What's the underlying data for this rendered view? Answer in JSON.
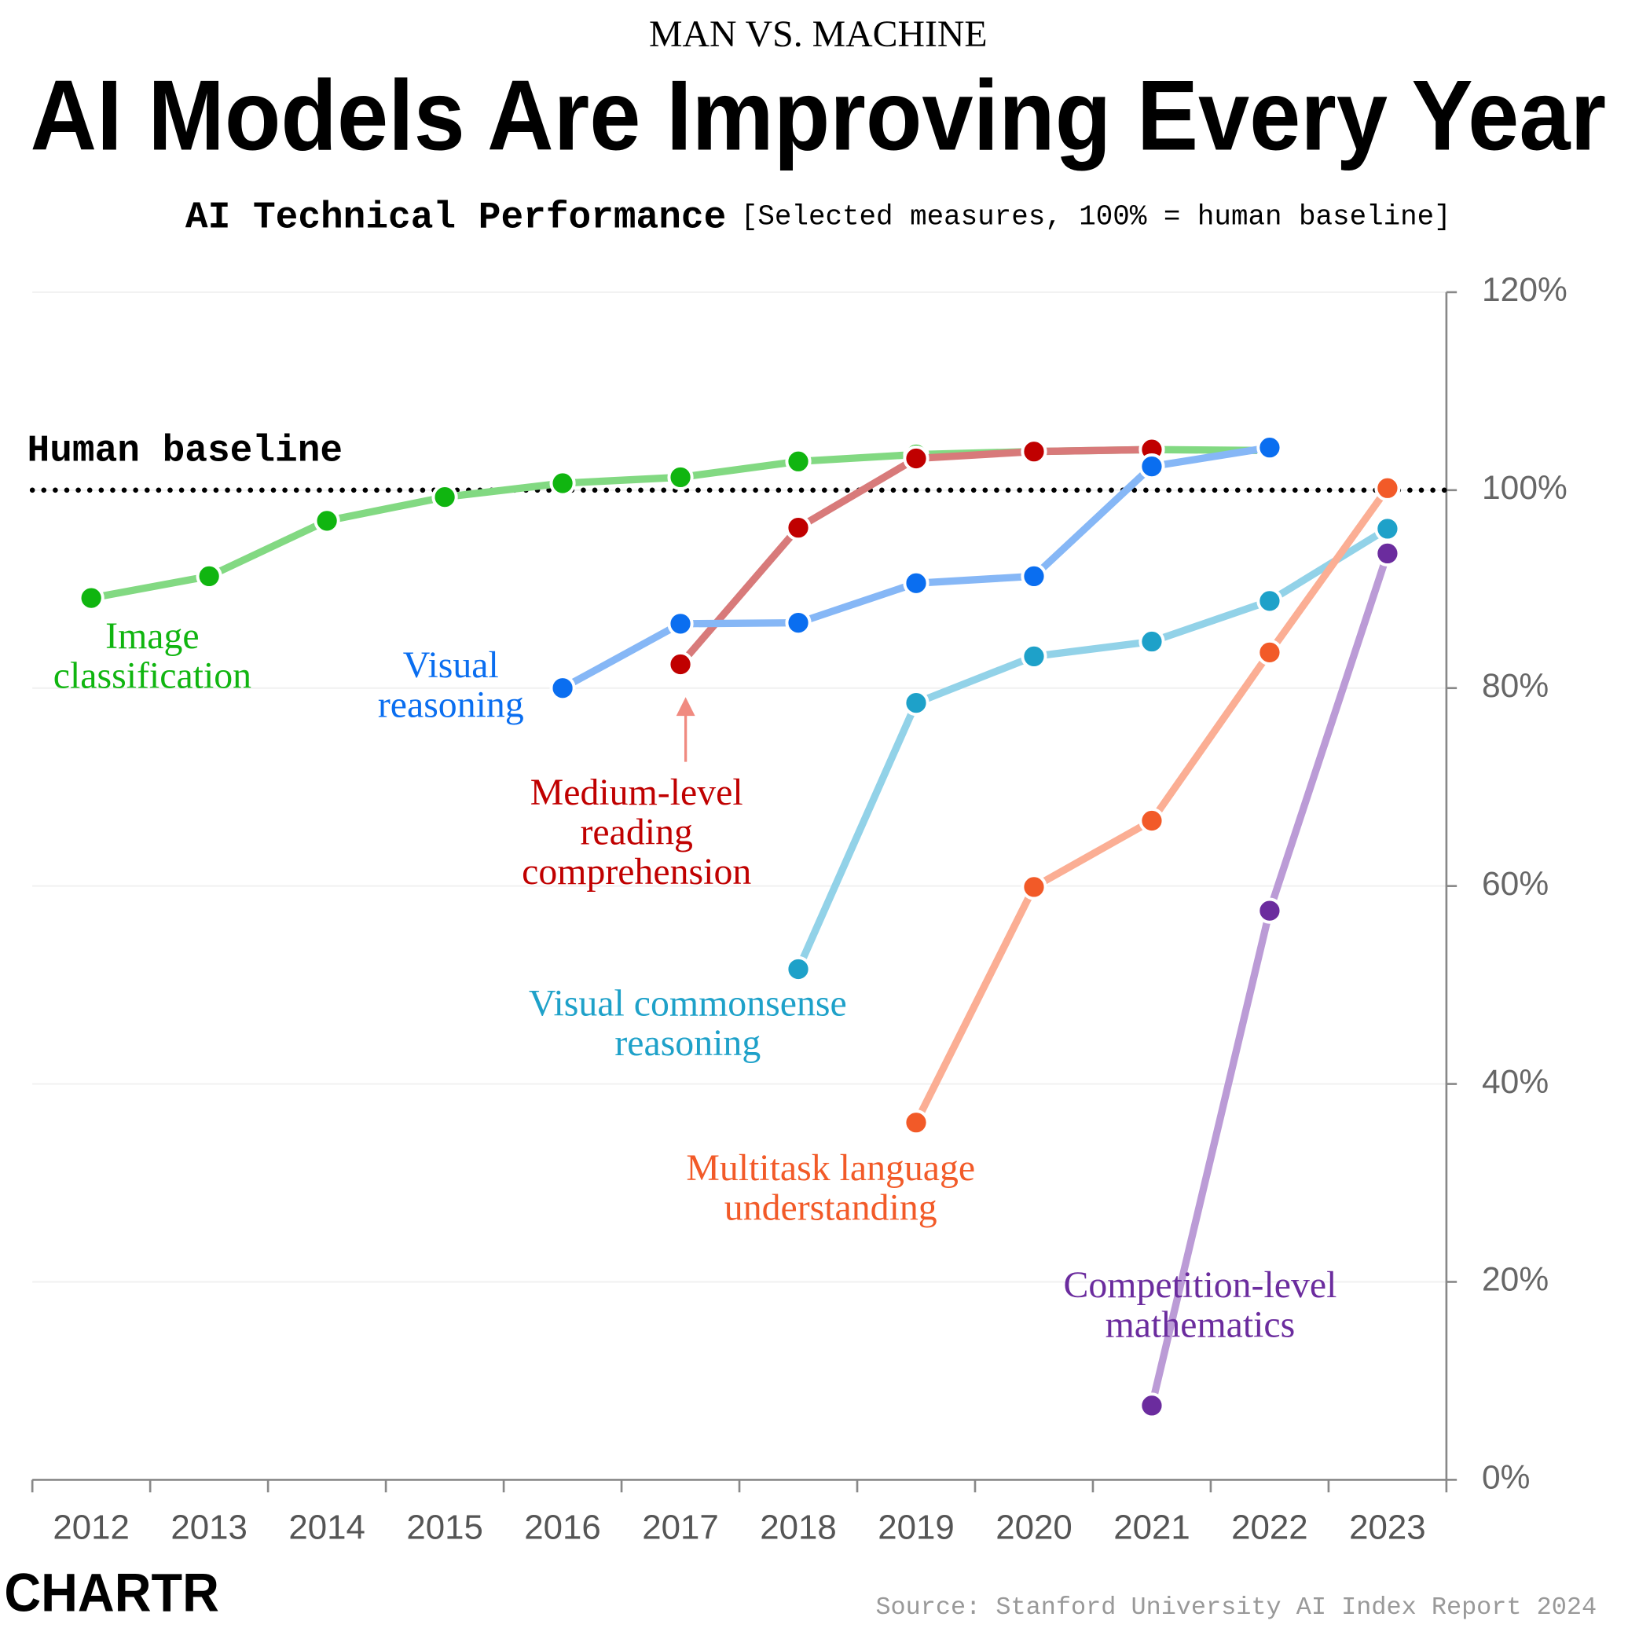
{
  "chart_data": {
    "type": "line",
    "kicker": "MAN VS. MACHINE",
    "title": "AI Models Are Improving Every Year",
    "subtitle": "AI Technical Performance",
    "subtitle_note": "[Selected measures, 100% = human baseline]",
    "source": "Source: Stanford University AI Index Report 2024",
    "logo": "CHARTR",
    "baseline": 100,
    "baseline_label": "Human baseline",
    "categories": [
      "2012",
      "2013",
      "2014",
      "2015",
      "2016",
      "2017",
      "2018",
      "2019",
      "2020",
      "2021",
      "2022",
      "2023"
    ],
    "ylim": [
      0,
      120
    ],
    "yticks": [
      {
        "value": 0,
        "label": "0%"
      },
      {
        "value": 20,
        "label": "20%"
      },
      {
        "value": 40,
        "label": "40%"
      },
      {
        "value": 60,
        "label": "60%"
      },
      {
        "value": 80,
        "label": "80%"
      },
      {
        "value": 100,
        "label": "100%"
      },
      {
        "value": 120,
        "label": "120%"
      }
    ],
    "grid": true,
    "series": [
      {
        "name": "Image classification",
        "color": "#10b510",
        "line_color": "#82d982",
        "values": [
          89.1,
          91.3,
          96.9,
          99.3,
          100.7,
          101.3,
          102.9,
          103.6,
          103.9,
          104.1,
          104.0,
          null
        ]
      },
      {
        "name": "Visual commonsense reasoning",
        "color": "#1ea1c9",
        "line_color": "#92d2e8",
        "values": [
          null,
          null,
          null,
          null,
          null,
          null,
          51.6,
          78.5,
          83.2,
          84.7,
          88.8,
          96.1
        ]
      },
      {
        "name": "Multitask language understanding",
        "color": "#f25a28",
        "line_color": "#fbae94",
        "values": [
          null,
          null,
          null,
          null,
          null,
          null,
          null,
          36.1,
          59.9,
          66.6,
          83.6,
          100.2
        ]
      },
      {
        "name": "Competition-level mathematics",
        "color": "#6b2c9e",
        "line_color": "#bb9bd6",
        "values": [
          null,
          null,
          null,
          null,
          null,
          null,
          null,
          null,
          null,
          7.5,
          57.5,
          93.6
        ]
      },
      {
        "name": "Medium-level reading comprehension",
        "color": "#c00000",
        "line_color": "#d87a7a",
        "values": [
          null,
          null,
          null,
          null,
          null,
          82.4,
          96.2,
          103.2,
          103.9,
          104.1,
          null,
          null
        ]
      },
      {
        "name": "Visual reasoning",
        "color": "#0a6ef0",
        "line_color": "#86b7f6",
        "values": [
          null,
          null,
          null,
          null,
          80.0,
          86.5,
          86.6,
          90.6,
          91.3,
          102.4,
          104.3,
          null
        ]
      }
    ]
  }
}
